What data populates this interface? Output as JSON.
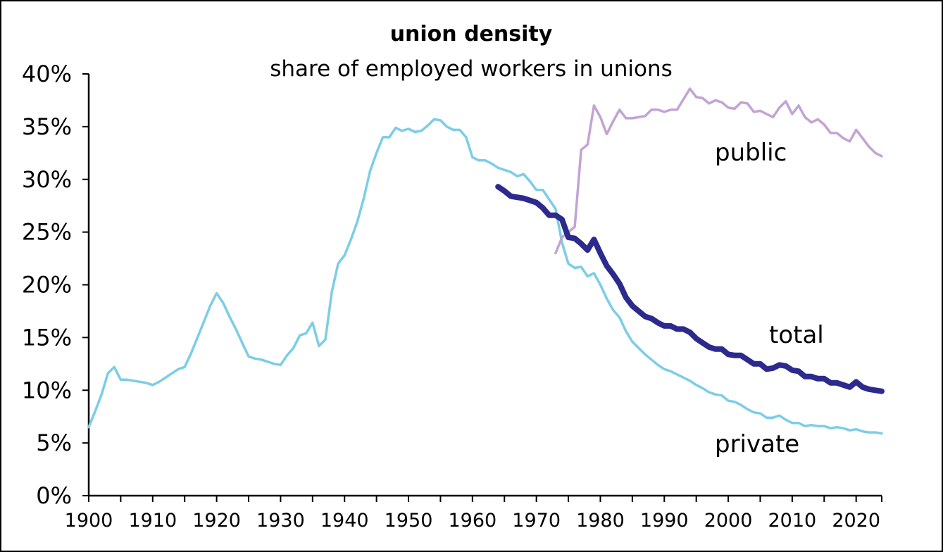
{
  "chart_data": {
    "type": "line",
    "title": "union density",
    "subtitle": "share of employed workers in unions",
    "xlabel": "",
    "ylabel": "",
    "xlim": [
      1900,
      2024
    ],
    "ylim": [
      0,
      40
    ],
    "x_ticks": [
      "1900",
      "1910",
      "1920",
      "1930",
      "1940",
      "1950",
      "1960",
      "1970",
      "1980",
      "1990",
      "2000",
      "2010",
      "2020"
    ],
    "y_ticks": [
      "0%",
      "5%",
      "10%",
      "15%",
      "20%",
      "25%",
      "30%",
      "35%",
      "40%"
    ],
    "grid": false,
    "series": [
      {
        "name": "private",
        "color": "#7ccde6",
        "x": [
          1900,
          1901,
          1902,
          1903,
          1904,
          1905,
          1906,
          1907,
          1908,
          1909,
          1910,
          1911,
          1912,
          1913,
          1914,
          1915,
          1916,
          1917,
          1918,
          1919,
          1920,
          1921,
          1922,
          1923,
          1924,
          1925,
          1926,
          1927,
          1928,
          1929,
          1930,
          1931,
          1932,
          1933,
          1934,
          1935,
          1936,
          1937,
          1938,
          1939,
          1940,
          1941,
          1942,
          1943,
          1944,
          1945,
          1946,
          1947,
          1948,
          1949,
          1950,
          1951,
          1952,
          1953,
          1954,
          1955,
          1956,
          1957,
          1958,
          1959,
          1960,
          1961,
          1962,
          1963,
          1964,
          1965,
          1966,
          1967,
          1968,
          1969,
          1970,
          1971,
          1972,
          1973,
          1974,
          1975,
          1976,
          1977,
          1978,
          1979,
          1980,
          1981,
          1982,
          1983,
          1984,
          1985,
          1986,
          1987,
          1988,
          1989,
          1990,
          1991,
          1992,
          1993,
          1994,
          1995,
          1996,
          1997,
          1998,
          1999,
          2000,
          2001,
          2002,
          2003,
          2004,
          2005,
          2006,
          2007,
          2008,
          2009,
          2010,
          2011,
          2012,
          2013,
          2014,
          2015,
          2016,
          2017,
          2018,
          2019,
          2020,
          2021,
          2022,
          2023,
          2024
        ],
        "y": [
          6.5,
          8.0,
          9.6,
          11.6,
          12.2,
          11.0,
          11.0,
          10.9,
          10.8,
          10.7,
          10.5,
          10.8,
          11.2,
          11.6,
          12.0,
          12.2,
          13.5,
          15.0,
          16.5,
          18.0,
          19.2,
          18.3,
          17.0,
          15.8,
          14.5,
          13.2,
          13.0,
          12.9,
          12.7,
          12.5,
          12.4,
          13.3,
          14.0,
          15.2,
          15.4,
          16.4,
          14.2,
          14.8,
          19.3,
          22.0,
          22.8,
          24.3,
          26.0,
          28.2,
          30.8,
          32.5,
          34.0,
          34.0,
          34.9,
          34.6,
          34.8,
          34.5,
          34.6,
          35.1,
          35.7,
          35.6,
          35.0,
          34.7,
          34.7,
          34.0,
          32.1,
          31.8,
          31.8,
          31.5,
          31.1,
          30.9,
          30.7,
          30.3,
          30.5,
          29.8,
          29.0,
          29.0,
          28.1,
          27.2,
          24.0,
          22.0,
          21.6,
          21.7,
          20.8,
          21.1,
          20.0,
          18.7,
          17.6,
          16.9,
          15.6,
          14.6,
          14.0,
          13.4,
          12.9,
          12.4,
          12.0,
          11.8,
          11.5,
          11.2,
          10.9,
          10.5,
          10.2,
          9.8,
          9.6,
          9.5,
          9.0,
          8.9,
          8.6,
          8.2,
          7.9,
          7.8,
          7.4,
          7.4,
          7.6,
          7.2,
          6.9,
          6.9,
          6.6,
          6.7,
          6.6,
          6.6,
          6.4,
          6.5,
          6.4,
          6.2,
          6.3,
          6.1,
          6.0,
          6.0,
          5.9
        ]
      },
      {
        "name": "public",
        "color": "#c3a3d4",
        "x": [
          1973,
          1974,
          1975,
          1976,
          1977,
          1978,
          1979,
          1980,
          1981,
          1982,
          1983,
          1984,
          1985,
          1986,
          1987,
          1988,
          1989,
          1990,
          1991,
          1992,
          1993,
          1994,
          1995,
          1996,
          1997,
          1998,
          1999,
          2000,
          2001,
          2002,
          2003,
          2004,
          2005,
          2006,
          2007,
          2008,
          2009,
          2010,
          2011,
          2012,
          2013,
          2014,
          2015,
          2016,
          2017,
          2018,
          2019,
          2020,
          2021,
          2022,
          2023,
          2024
        ],
        "y": [
          23.0,
          24.5,
          25.0,
          25.5,
          32.8,
          33.3,
          37.0,
          35.9,
          34.3,
          35.5,
          36.6,
          35.8,
          35.8,
          35.9,
          36.0,
          36.6,
          36.6,
          36.4,
          36.6,
          36.6,
          37.6,
          38.6,
          37.8,
          37.7,
          37.2,
          37.5,
          37.3,
          36.8,
          36.7,
          37.3,
          37.2,
          36.4,
          36.5,
          36.2,
          35.9,
          36.8,
          37.4,
          36.2,
          37.0,
          35.9,
          35.4,
          35.7,
          35.2,
          34.4,
          34.4,
          33.9,
          33.6,
          34.7,
          33.9,
          33.1,
          32.5,
          32.2
        ]
      },
      {
        "name": "total",
        "color": "#2c2a8c",
        "x": [
          1964,
          1965,
          1966,
          1967,
          1968,
          1969,
          1970,
          1971,
          1972,
          1973,
          1974,
          1975,
          1976,
          1977,
          1978,
          1979,
          1980,
          1981,
          1982,
          1983,
          1984,
          1985,
          1986,
          1987,
          1988,
          1989,
          1990,
          1991,
          1992,
          1993,
          1994,
          1995,
          1996,
          1997,
          1998,
          1999,
          2000,
          2001,
          2002,
          2003,
          2004,
          2005,
          2006,
          2007,
          2008,
          2009,
          2010,
          2011,
          2012,
          2013,
          2014,
          2015,
          2016,
          2017,
          2018,
          2019,
          2020,
          2021,
          2022,
          2023,
          2024
        ],
        "y": [
          29.3,
          28.9,
          28.4,
          28.3,
          28.2,
          28.0,
          27.8,
          27.3,
          26.6,
          26.6,
          26.2,
          24.5,
          24.4,
          23.9,
          23.3,
          24.3,
          23.0,
          21.8,
          21.0,
          20.1,
          18.8,
          18.0,
          17.5,
          17.0,
          16.8,
          16.4,
          16.1,
          16.1,
          15.8,
          15.8,
          15.5,
          14.9,
          14.5,
          14.1,
          13.9,
          13.9,
          13.4,
          13.3,
          13.3,
          12.9,
          12.5,
          12.5,
          12.0,
          12.1,
          12.4,
          12.3,
          11.9,
          11.8,
          11.3,
          11.3,
          11.1,
          11.1,
          10.7,
          10.7,
          10.5,
          10.3,
          10.8,
          10.3,
          10.1,
          10.0,
          9.9
        ]
      }
    ],
    "annotations": [
      {
        "text": "public",
        "series": "public"
      },
      {
        "text": "total",
        "series": "total"
      },
      {
        "text": "private",
        "series": "private"
      }
    ]
  }
}
